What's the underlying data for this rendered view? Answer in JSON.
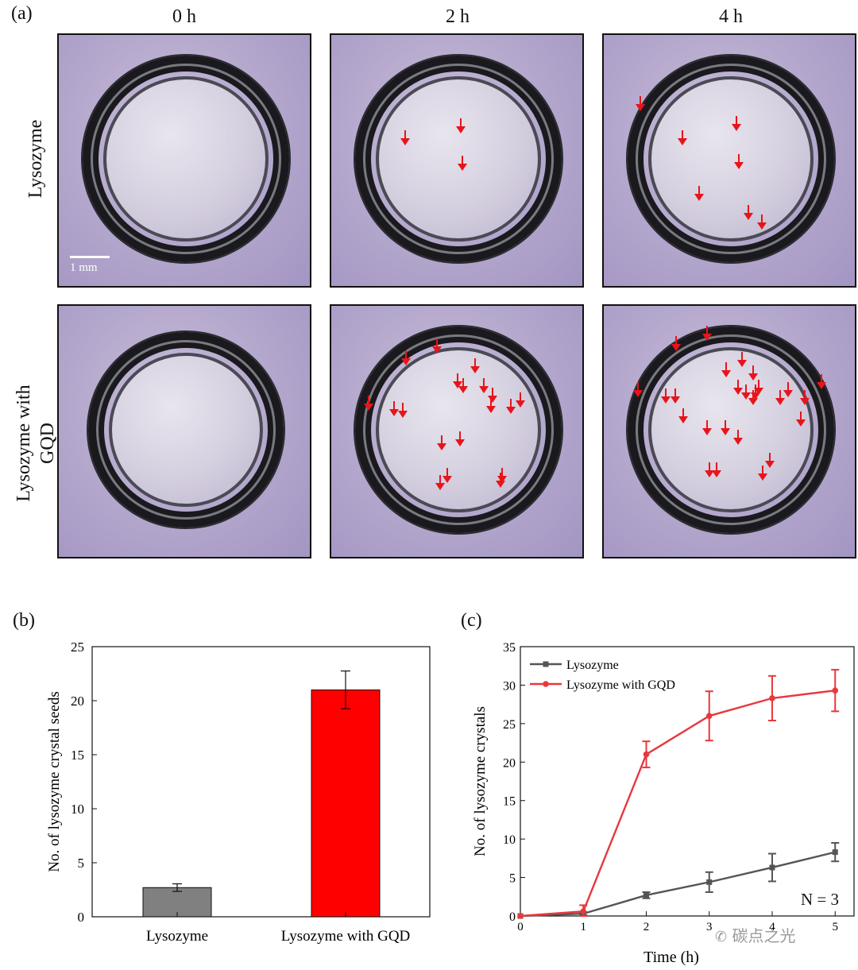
{
  "panel_a": {
    "label": "(a)",
    "columns": [
      "0 h",
      "2 h",
      "4 h"
    ],
    "rows": [
      "Lysozyme",
      "Lysozyme with GQD"
    ],
    "scale_bar_label": "1 mm"
  },
  "panel_b": {
    "label": "(b)"
  },
  "panel_c": {
    "label": "(c)",
    "annotation": "N = 3"
  },
  "watermark": "碳点之光",
  "colors": {
    "gray_series": "#555555",
    "red_series": "#e8383d",
    "bar_gray": "#808080",
    "bar_red": "#ff0000",
    "arrow": "#e8141a"
  },
  "chart_data": [
    {
      "type": "bar",
      "categories": [
        "Lysozyme",
        "Lysozyme with GQD"
      ],
      "values": [
        2.7,
        21.0
      ],
      "errors": [
        0.35,
        1.75
      ],
      "ylabel": "No. of  lysozyme crystal seeds",
      "ylim": [
        0,
        25
      ],
      "yticks": [
        0,
        5,
        10,
        15,
        20,
        25
      ]
    },
    {
      "type": "line",
      "x": [
        0,
        1,
        2,
        3,
        4,
        5
      ],
      "series": [
        {
          "name": "Lysozyme",
          "values": [
            0,
            0.3,
            2.7,
            4.4,
            6.3,
            8.3
          ],
          "errors": [
            0,
            0.2,
            0.4,
            1.3,
            1.8,
            1.2
          ]
        },
        {
          "name": "Lysozyme with GQD",
          "values": [
            0,
            0.6,
            21.0,
            26.0,
            28.3,
            29.3
          ],
          "errors": [
            0,
            0.8,
            1.7,
            3.2,
            2.9,
            2.7
          ]
        }
      ],
      "xlabel": "Time (h)",
      "ylabel": "No. of  lysozyme crystals",
      "xlim": [
        0,
        5.3
      ],
      "ylim": [
        0,
        35
      ],
      "xticks": [
        0,
        1,
        2,
        3,
        4,
        5
      ],
      "yticks": [
        0,
        5,
        10,
        15,
        20,
        25,
        30,
        35
      ],
      "legend": "top-left"
    }
  ]
}
